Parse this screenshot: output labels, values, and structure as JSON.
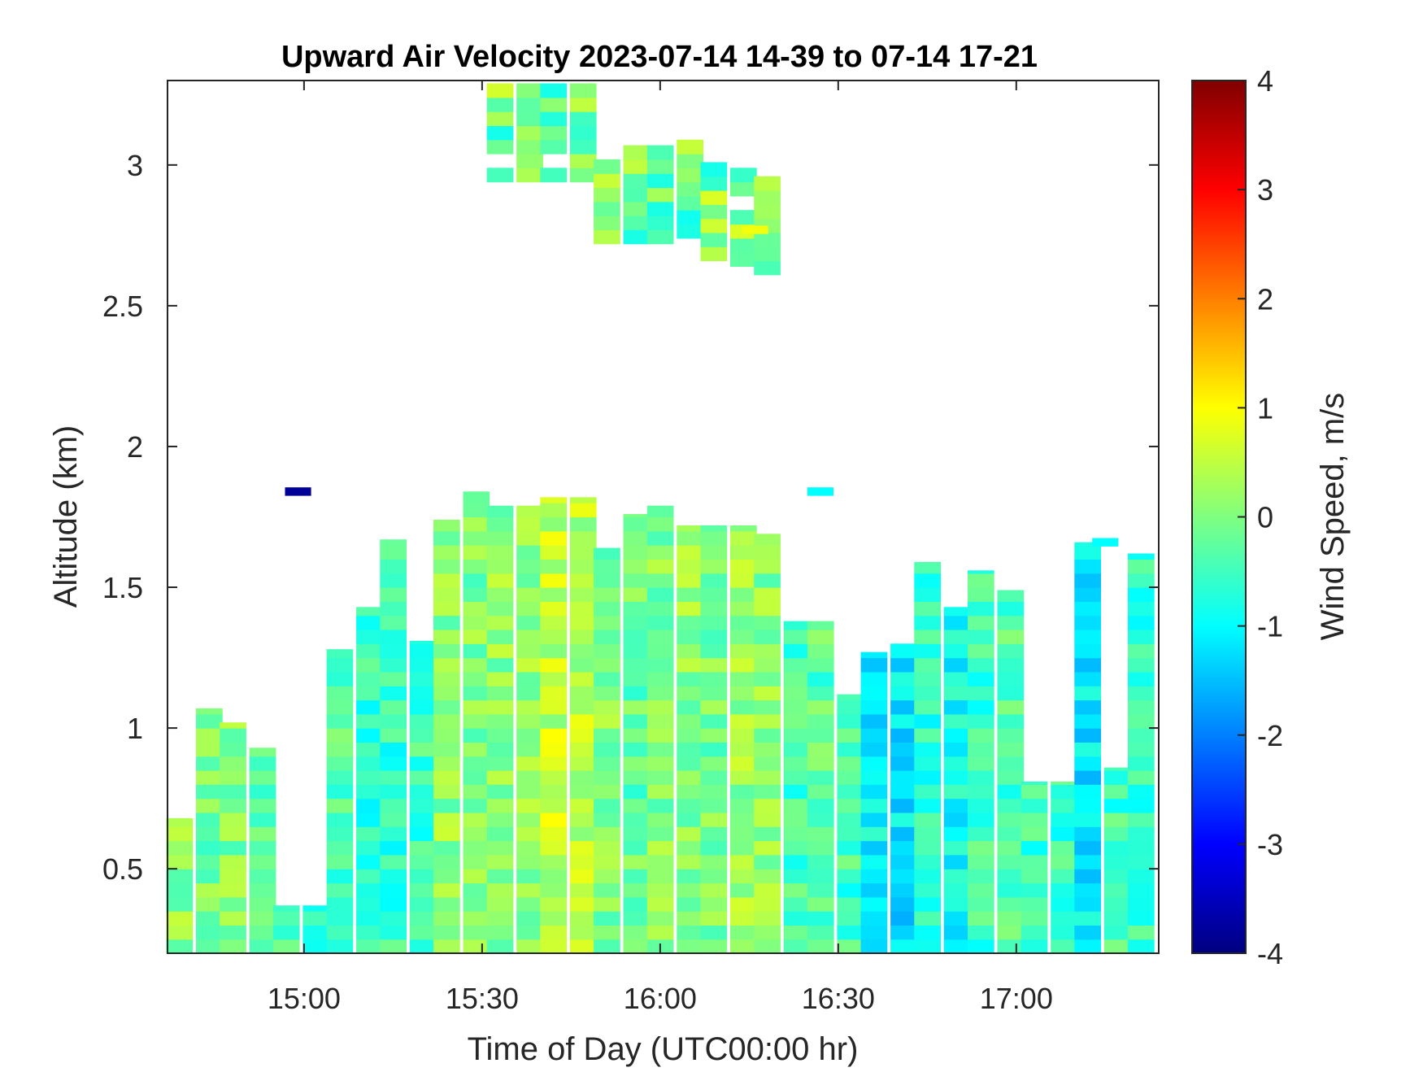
{
  "chart_data": {
    "type": "heatmap",
    "title": "Upward Air Velocity 2023-07-14 14-39 to 07-14 17-21",
    "xlabel": "Time of Day (UTC00:00 hr)",
    "ylabel": "Altitude (km)",
    "colorbar_label": "Wind Speed, m/s",
    "xlim": [
      "14:37",
      "17:24"
    ],
    "ylim": [
      0.2,
      3.3
    ],
    "clim": [
      -4,
      4
    ],
    "x_ticks": [
      {
        "time": "15:00",
        "label": "15:00"
      },
      {
        "time": "15:30",
        "label": "15:30"
      },
      {
        "time": "16:00",
        "label": "16:00"
      },
      {
        "time": "16:30",
        "label": "16:30"
      },
      {
        "time": "17:00",
        "label": "17:00"
      }
    ],
    "y_ticks": [
      {
        "value": 0.5,
        "label": "0.5"
      },
      {
        "value": 1,
        "label": "1"
      },
      {
        "value": 1.5,
        "label": "1.5"
      },
      {
        "value": 2,
        "label": "2"
      },
      {
        "value": 2.5,
        "label": "2.5"
      },
      {
        "value": 3,
        "label": "3"
      }
    ],
    "colorbar_ticks": [
      {
        "value": 4,
        "label": "4"
      },
      {
        "value": 3,
        "label": "3"
      },
      {
        "value": 2,
        "label": "2"
      },
      {
        "value": 1,
        "label": "1"
      },
      {
        "value": 0,
        "label": "0"
      },
      {
        "value": -1,
        "label": "-1"
      },
      {
        "value": -2,
        "label": "-2"
      },
      {
        "value": -3,
        "label": "-3"
      },
      {
        "value": -4,
        "label": "-4"
      }
    ],
    "colormap": "jet",
    "grid": false,
    "time_columns": [
      "14:39",
      "14:44",
      "14:48",
      "14:53",
      "14:57",
      "15:02",
      "15:06",
      "15:11",
      "15:15",
      "15:20",
      "15:24",
      "15:29",
      "15:33",
      "15:38",
      "15:42",
      "15:47",
      "15:51",
      "15:56",
      "16:00",
      "16:05",
      "16:09",
      "16:14",
      "16:18",
      "16:23",
      "16:27",
      "16:32",
      "16:36",
      "16:41",
      "16:45",
      "16:50",
      "16:54",
      "16:59",
      "17:03",
      "17:08",
      "17:12",
      "17:17",
      "17:21"
    ],
    "profile_tops_km": [
      0.68,
      1.07,
      1.02,
      0.93,
      0.37,
      0.37,
      1.28,
      1.43,
      1.67,
      1.31,
      1.74,
      1.84,
      1.79,
      1.79,
      1.82,
      1.82,
      1.64,
      1.76,
      1.79,
      1.72,
      1.72,
      1.72,
      1.69,
      1.38,
      1.38,
      1.12,
      1.27,
      1.3,
      1.59,
      1.43,
      1.56,
      1.49,
      0.81,
      0.81,
      1.66,
      0.86,
      1.62
    ],
    "column_mean_ms": [
      0.1,
      -0.1,
      0.0,
      -0.2,
      -0.5,
      -0.5,
      -0.4,
      -0.6,
      -0.6,
      -0.5,
      0.1,
      0.0,
      0.1,
      0.2,
      0.5,
      0.4,
      0.0,
      -0.2,
      0.0,
      0.1,
      -0.1,
      0.2,
      0.1,
      -0.5,
      -0.3,
      -0.5,
      -1.0,
      -1.2,
      -0.6,
      -0.9,
      -0.5,
      -0.4,
      -0.5,
      -0.6,
      -1.1,
      -0.5,
      -0.6
    ],
    "upper_layer_tops_km": [
      3.29,
      3.29,
      3.29,
      3.29,
      3.07,
      3.07,
      3.07,
      3.09,
      3.01,
      2.99,
      2.96
    ],
    "isolated_cells": [
      {
        "time": "14:59",
        "altitude_km": 1.84,
        "value_ms": -3.8
      },
      {
        "time": "16:27",
        "altitude_km": 1.84,
        "value_ms": -1.0
      },
      {
        "time": "17:15",
        "altitude_km": 1.66,
        "value_ms": -1.0
      },
      {
        "time": "16:16",
        "altitude_km": 2.77,
        "value_ms": 0.9
      }
    ]
  }
}
